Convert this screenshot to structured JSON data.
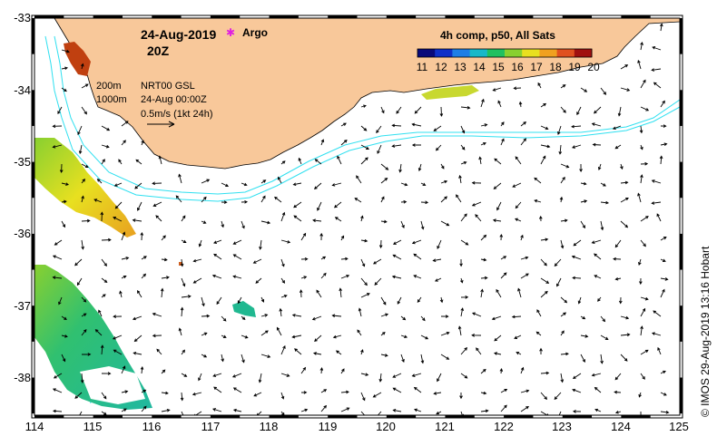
{
  "header": {
    "date": "24-Aug-2019",
    "time": "20Z",
    "argo_label": "Argo",
    "argo_marker_color": "#e01ee0"
  },
  "legend": {
    "isobath_shallow": "200m",
    "isobath_deep": "1000m",
    "current_product": "NRT00 GSL",
    "current_time": "24-Aug 00:00Z",
    "scale_label": "0.5m/s (1kt 24h)"
  },
  "colorbar": {
    "title": "4h comp, p50, All Sats",
    "ticks": [
      "11",
      "12",
      "13",
      "14",
      "15",
      "16",
      "17",
      "18",
      "19",
      "20"
    ],
    "min": 11,
    "max": 20,
    "colors": [
      "#0a0a7a",
      "#1030c8",
      "#1e7ee6",
      "#18b8c8",
      "#20c060",
      "#88d030",
      "#e8e020",
      "#f0a020",
      "#e05020",
      "#a01010"
    ]
  },
  "axes": {
    "lon_ticks": [
      "114",
      "115",
      "116",
      "117",
      "118",
      "119",
      "120",
      "121",
      "122",
      "123",
      "124",
      "125"
    ],
    "lat_ticks": [
      "-33",
      "-34",
      "-35",
      "-36",
      "-37",
      "-38"
    ],
    "lon_range": [
      114,
      125
    ],
    "lat_range": [
      -38.55,
      -33.0
    ]
  },
  "credit": "© IMOS 29-Aug-2019 13:16 Hobart",
  "colors": {
    "land": "#f8c89a",
    "isobath": "#30e0f0",
    "arrow": "#000000"
  }
}
